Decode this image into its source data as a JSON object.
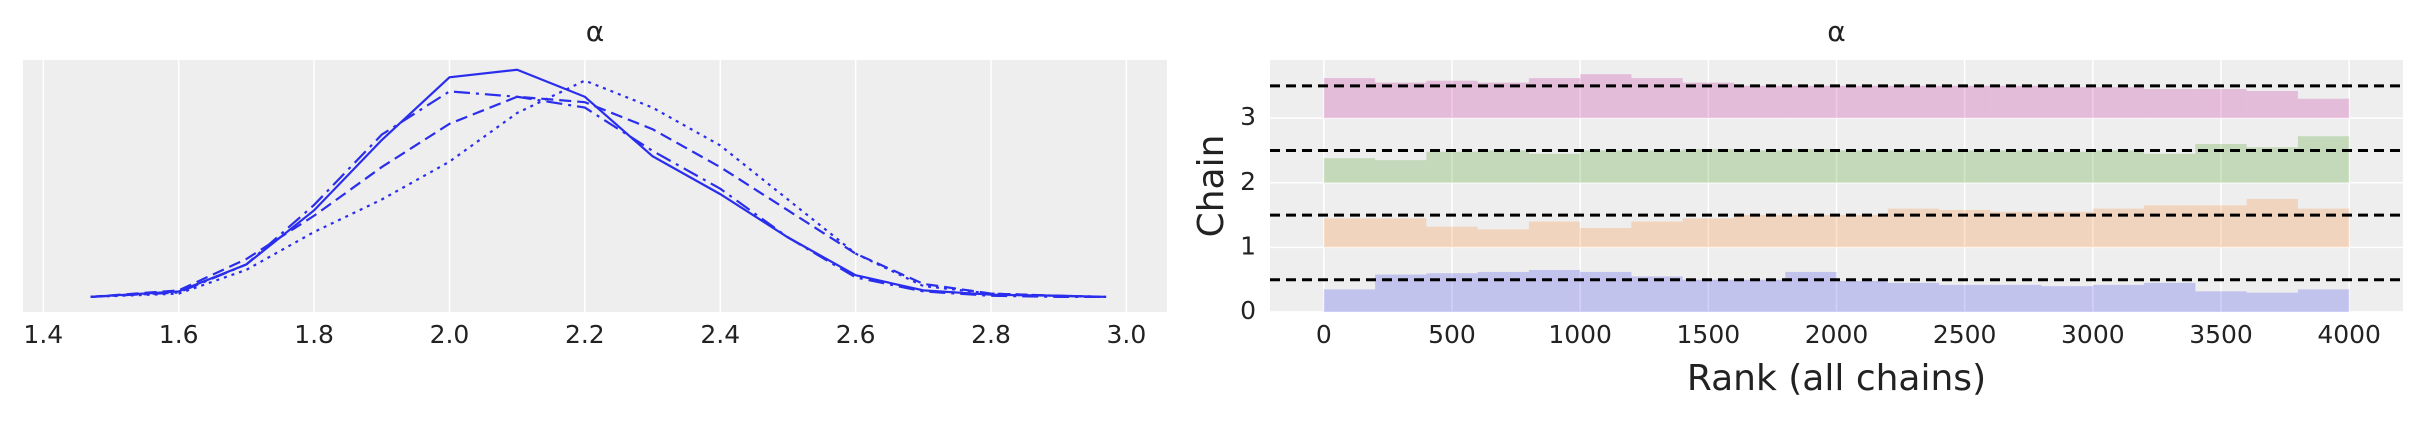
{
  "chart_data": [
    {
      "type": "line",
      "title": "α",
      "x": [
        1.47,
        1.6,
        1.7,
        1.8,
        1.9,
        2.0,
        2.1,
        2.2,
        2.3,
        2.4,
        2.5,
        2.6,
        2.7,
        2.8,
        2.9,
        2.97
      ],
      "series": [
        {
          "color": "#2a2eec",
          "linestyle": "solid",
          "values": [
            0,
            0.05,
            0.3,
            0.8,
            1.45,
            2.03,
            2.1,
            1.85,
            1.3,
            0.95,
            0.55,
            0.2,
            0.06,
            0.02,
            0.01,
            0
          ]
        },
        {
          "color": "#2a2eec",
          "linestyle": "dashed",
          "values": [
            0,
            0.06,
            0.35,
            0.75,
            1.2,
            1.6,
            1.85,
            1.8,
            1.55,
            1.2,
            0.8,
            0.4,
            0.12,
            0.03,
            0.01,
            0
          ]
        },
        {
          "color": "#2a2eec",
          "linestyle": "dashdot",
          "values": [
            0,
            0.04,
            0.3,
            0.85,
            1.5,
            1.9,
            1.85,
            1.75,
            1.35,
            1.0,
            0.55,
            0.18,
            0.05,
            0.01,
            0,
            0
          ]
        },
        {
          "color": "#2a2eec",
          "linestyle": "dotted",
          "values": [
            0,
            0.03,
            0.25,
            0.6,
            0.9,
            1.25,
            1.7,
            2.0,
            1.75,
            1.4,
            0.9,
            0.4,
            0.1,
            0.03,
            0.01,
            0
          ]
        }
      ],
      "xlim": [
        1.37,
        3.06
      ],
      "ylim": [
        -0.14,
        2.19
      ],
      "xticks": [
        {
          "value": 1.4,
          "label": "1.4"
        },
        {
          "value": 1.6,
          "label": "1.6"
        },
        {
          "value": 1.8,
          "label": "1.8"
        },
        {
          "value": 2.0,
          "label": "2.0"
        },
        {
          "value": 2.2,
          "label": "2.2"
        },
        {
          "value": 2.4,
          "label": "2.4"
        },
        {
          "value": 2.6,
          "label": "2.6"
        },
        {
          "value": 2.8,
          "label": "2.8"
        },
        {
          "value": 3.0,
          "label": "3.0"
        }
      ],
      "grid": true
    },
    {
      "type": "histogram",
      "title": "α",
      "xlabel": "Rank (all chains)",
      "ylabel": "Chain",
      "bins": [
        0,
        200,
        400,
        600,
        800,
        1000,
        1200,
        1400,
        1600,
        1800,
        2000,
        2200,
        2400,
        2600,
        2800,
        3000,
        3200,
        3400,
        3600,
        3800,
        4000
      ],
      "series": [
        {
          "color": "#2a2eec",
          "offset": 0,
          "values": [
            0.35,
            0.58,
            0.6,
            0.62,
            0.65,
            0.62,
            0.55,
            0.5,
            0.5,
            0.62,
            0.48,
            0.45,
            0.42,
            0.42,
            0.4,
            0.42,
            0.45,
            0.32,
            0.3,
            0.35
          ]
        },
        {
          "color": "#fa7c17",
          "offset": 1,
          "values": [
            0.45,
            0.45,
            0.32,
            0.28,
            0.4,
            0.3,
            0.4,
            0.45,
            0.5,
            0.5,
            0.5,
            0.6,
            0.58,
            0.55,
            0.55,
            0.6,
            0.65,
            0.65,
            0.75,
            0.6
          ]
        },
        {
          "color": "#328c06",
          "offset": 2,
          "values": [
            0.38,
            0.35,
            0.48,
            0.5,
            0.45,
            0.5,
            0.5,
            0.52,
            0.5,
            0.52,
            0.5,
            0.5,
            0.5,
            0.5,
            0.48,
            0.5,
            0.45,
            0.6,
            0.55,
            0.72
          ]
        },
        {
          "color": "#c10c90",
          "offset": 3,
          "values": [
            0.62,
            0.55,
            0.58,
            0.55,
            0.62,
            0.68,
            0.62,
            0.55,
            0.5,
            0.5,
            0.5,
            0.5,
            0.5,
            0.5,
            0.48,
            0.48,
            0.45,
            0.45,
            0.42,
            0.3
          ]
        }
      ],
      "hlines": [
        0.5,
        1.5,
        2.5,
        3.5
      ],
      "xlim": [
        -210,
        4210
      ],
      "ylim": [
        0,
        3.9
      ],
      "xticks": [
        0,
        500,
        1000,
        1500,
        2000,
        2500,
        3000,
        3500,
        4000
      ],
      "yticks": [
        0,
        1,
        2,
        3
      ],
      "grid": true
    }
  ]
}
